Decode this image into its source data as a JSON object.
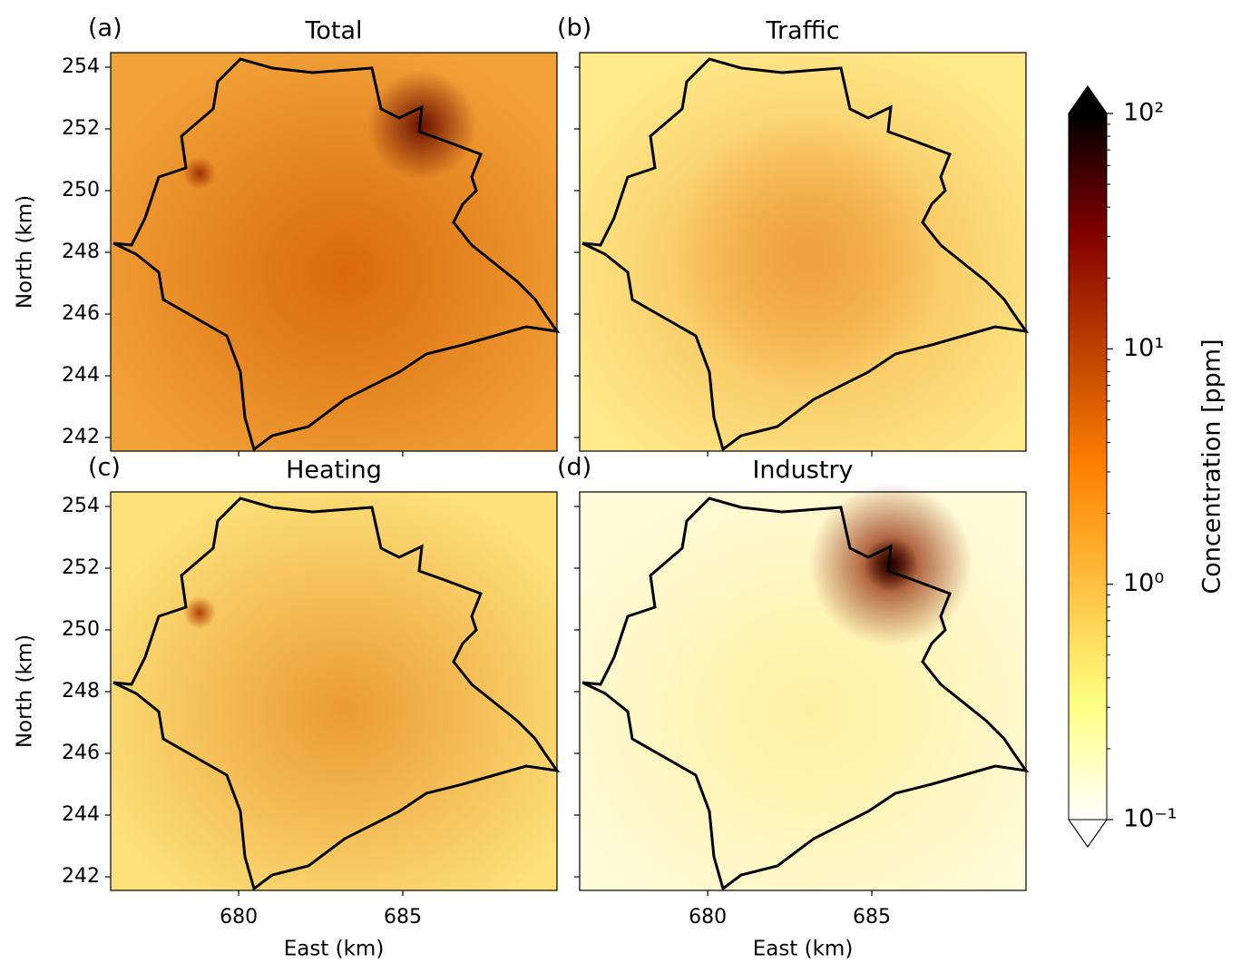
{
  "chart_data": [
    {
      "type": "heatmap",
      "panel_label": "(a)",
      "title": "Total",
      "ylabel": "North (km)",
      "xlim": [
        676.1,
        689.7
      ],
      "ylim": [
        241.56,
        254.47
      ],
      "xticks": [
        680,
        685
      ],
      "yticks": [
        242,
        244,
        246,
        248,
        250,
        252,
        254
      ]
    },
    {
      "type": "heatmap",
      "panel_label": "(b)",
      "title": "Traffic",
      "xlim": [
        676.1,
        689.7
      ],
      "ylim": [
        241.56,
        254.47
      ],
      "xticks": [
        680,
        685
      ],
      "yticks": [
        242,
        244,
        246,
        248,
        250,
        252,
        254
      ]
    },
    {
      "type": "heatmap",
      "panel_label": "(c)",
      "title": "Heating",
      "xlabel": "East (km)",
      "ylabel": "North (km)",
      "xlim": [
        676.1,
        689.7
      ],
      "ylim": [
        241.56,
        254.47
      ],
      "xticks": [
        680,
        685
      ],
      "yticks": [
        242,
        244,
        246,
        248,
        250,
        252,
        254
      ]
    },
    {
      "type": "heatmap",
      "panel_label": "(d)",
      "title": "Industry",
      "xlabel": "East (km)",
      "xlim": [
        676.1,
        689.7
      ],
      "ylim": [
        241.56,
        254.47
      ],
      "xticks": [
        680,
        685
      ],
      "yticks": [
        242,
        244,
        246,
        248,
        250,
        252,
        254
      ]
    },
    {
      "type": "colorbar",
      "label": "Concentration [ppm]",
      "log_scale": true,
      "lim": [
        0.1,
        100
      ],
      "ticks": [
        {
          "value": 0.1,
          "label": "10⁻¹"
        },
        {
          "value": 1,
          "label": "10⁰"
        },
        {
          "value": 10,
          "label": "10¹"
        },
        {
          "value": 100,
          "label": "10²"
        }
      ],
      "colors": [
        "#ffffff",
        "#ffff80",
        "#ffbf40",
        "#ff8000",
        "#bf4000",
        "#800000",
        "#000000"
      ]
    }
  ]
}
